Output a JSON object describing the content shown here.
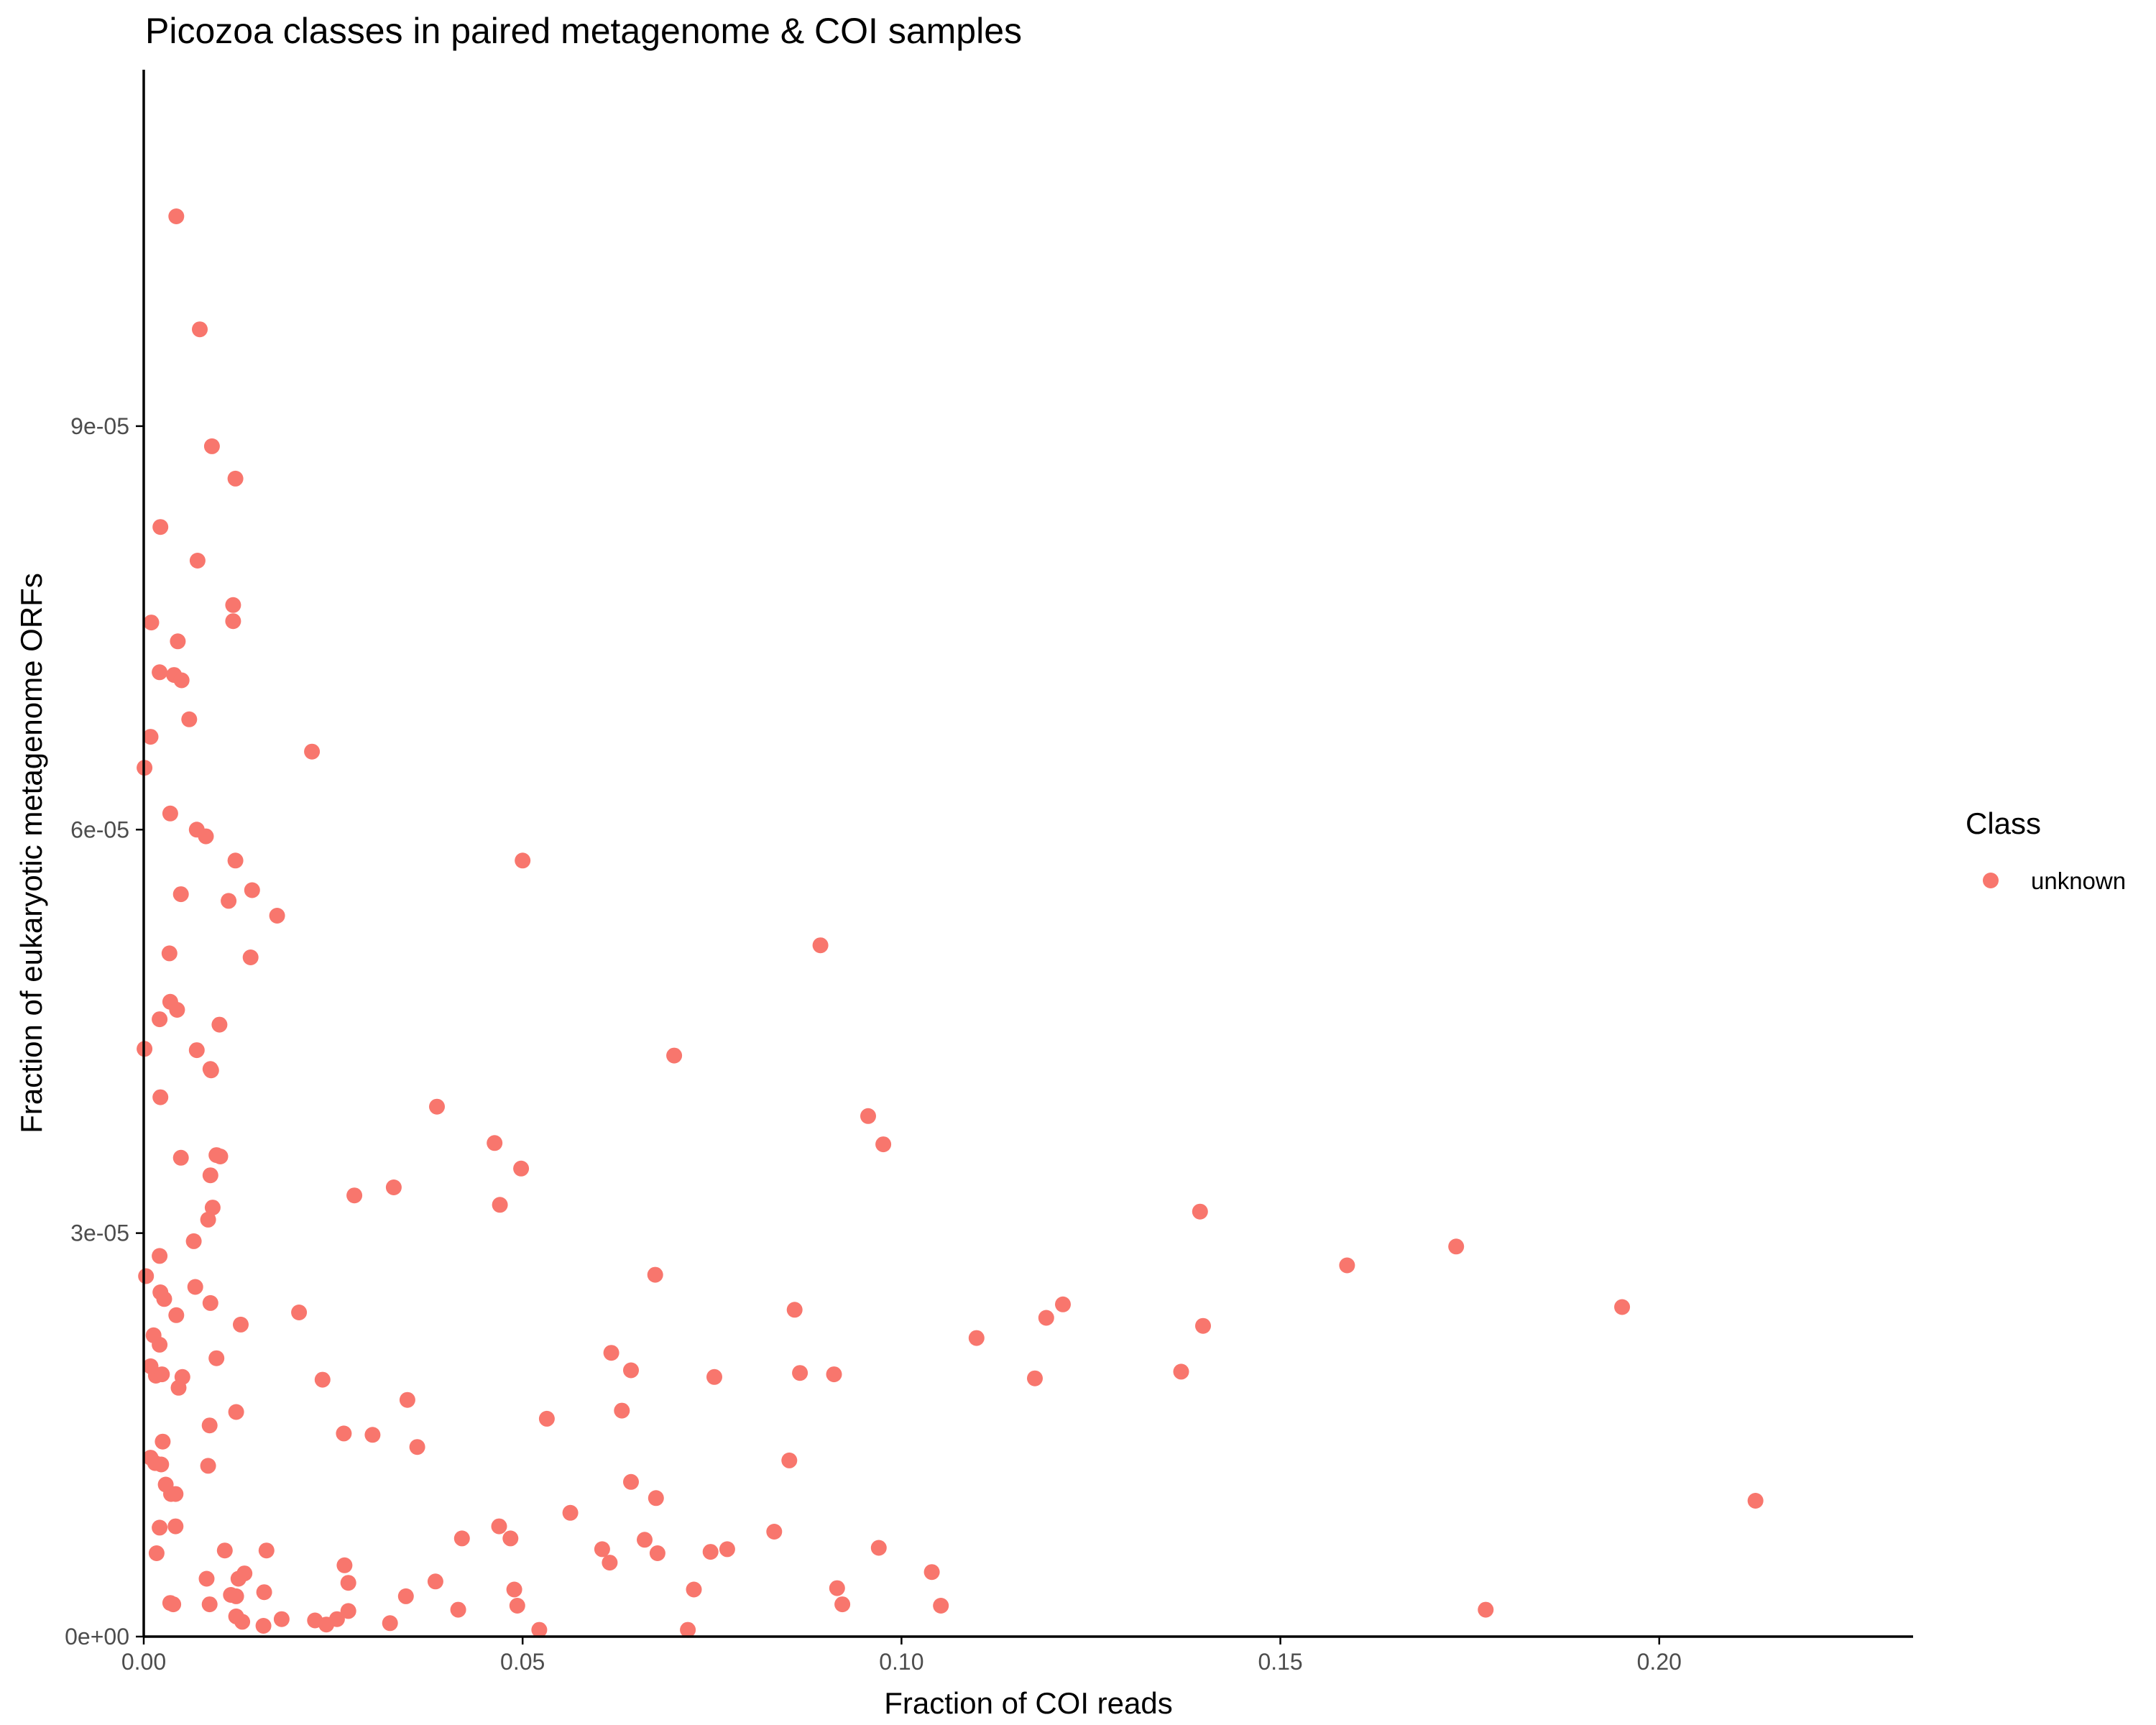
{
  "chart_data": {
    "type": "scatter",
    "title": "Picozoa classes in paired metagenome & COI samples",
    "xlabel": "Fraction of COI reads",
    "ylabel": "Fraction of eukaryotic metagenome ORFs",
    "xlim": [
      0,
      0.2335
    ],
    "ylim": [
      0,
      0.0001165
    ],
    "x_ticks": [
      0,
      0.05,
      0.1,
      0.15,
      0.2
    ],
    "x_tick_labels": [
      "0.00",
      "0.05",
      "0.10",
      "0.15",
      "0.20"
    ],
    "y_ticks": [
      0,
      3e-05,
      6e-05,
      9e-05
    ],
    "y_tick_labels": [
      "0e+00",
      "3e-05",
      "6e-05",
      "9e-05"
    ],
    "grid": false,
    "legend": {
      "title": "Class",
      "position": "right",
      "entries": [
        "unknown"
      ]
    },
    "series": [
      {
        "name": "unknown",
        "color": "#F8766D",
        "points": [
          [
            0.0043,
            0.0001056
          ],
          [
            0.0074,
            9.72e-05
          ],
          [
            0.009,
            8.85e-05
          ],
          [
            0.0121,
            8.61e-05
          ],
          [
            0.0022,
            8.25e-05
          ],
          [
            0.0071,
            8e-05
          ],
          [
            0.0118,
            7.67e-05
          ],
          [
            0.0118,
            7.55e-05
          ],
          [
            0.001,
            7.54e-05
          ],
          [
            0.0045,
            7.4e-05
          ],
          [
            0.0021,
            7.17e-05
          ],
          [
            0.004,
            7.15e-05
          ],
          [
            0.005,
            7.11e-05
          ],
          [
            0.006,
            6.82e-05
          ],
          [
            0.0009,
            6.69e-05
          ],
          [
            0.0222,
            6.58e-05
          ],
          [
            0.0001,
            6.46e-05
          ],
          [
            0.0035,
            6.12e-05
          ],
          [
            0.007,
            6e-05
          ],
          [
            0.0082,
            5.95e-05
          ],
          [
            0.0121,
            5.77e-05
          ],
          [
            0.05,
            5.77e-05
          ],
          [
            0.0143,
            5.55e-05
          ],
          [
            0.0049,
            5.52e-05
          ],
          [
            0.0112,
            5.47e-05
          ],
          [
            0.0176,
            5.36e-05
          ],
          [
            0.0893,
            5.14e-05
          ],
          [
            0.0034,
            5.08e-05
          ],
          [
            0.0141,
            5.05e-05
          ],
          [
            0.0035,
            4.72e-05
          ],
          [
            0.0044,
            4.66e-05
          ],
          [
            0.0021,
            4.59e-05
          ],
          [
            0.01,
            4.55e-05
          ],
          [
            0.0001,
            4.37e-05
          ],
          [
            0.007,
            4.36e-05
          ],
          [
            0.07,
            4.32e-05
          ],
          [
            0.0089,
            4.21e-05
          ],
          [
            0.0088,
            4.22e-05
          ],
          [
            0.0022,
            4.01e-05
          ],
          [
            0.0387,
            3.94e-05
          ],
          [
            0.0956,
            3.87e-05
          ],
          [
            0.0463,
            3.67e-05
          ],
          [
            0.0976,
            3.66e-05
          ],
          [
            0.0096,
            3.58e-05
          ],
          [
            0.0101,
            3.57e-05
          ],
          [
            0.0049,
            3.56e-05
          ],
          [
            0.0498,
            3.48e-05
          ],
          [
            0.0088,
            3.43e-05
          ],
          [
            0.033,
            3.34e-05
          ],
          [
            0.0278,
            3.28e-05
          ],
          [
            0.047,
            3.21e-05
          ],
          [
            0.0091,
            3.19e-05
          ],
          [
            0.1394,
            3.16e-05
          ],
          [
            0.0085,
            3.1e-05
          ],
          [
            0.0066,
            2.94e-05
          ],
          [
            0.1732,
            2.9e-05
          ],
          [
            0.0021,
            2.83e-05
          ],
          [
            0.1588,
            2.76e-05
          ],
          [
            0.0003,
            2.68e-05
          ],
          [
            0.0675,
            2.69e-05
          ],
          [
            0.0068,
            2.6e-05
          ],
          [
            0.0022,
            2.56e-05
          ],
          [
            0.0027,
            2.51e-05
          ],
          [
            0.0088,
            2.48e-05
          ],
          [
            0.1213,
            2.47e-05
          ],
          [
            0.1951,
            2.45e-05
          ],
          [
            0.0859,
            2.43e-05
          ],
          [
            0.0205,
            2.41e-05
          ],
          [
            0.0043,
            2.39e-05
          ],
          [
            0.1191,
            2.37e-05
          ],
          [
            0.0128,
            2.32e-05
          ],
          [
            0.1398,
            2.31e-05
          ],
          [
            0.0013,
            2.24e-05
          ],
          [
            0.1099,
            2.22e-05
          ],
          [
            0.0021,
            2.17e-05
          ],
          [
            0.0617,
            2.11e-05
          ],
          [
            0.0096,
            2.07e-05
          ],
          [
            0.0009,
            2.01e-05
          ],
          [
            0.0643,
            1.98e-05
          ],
          [
            0.0866,
            1.96e-05
          ],
          [
            0.0911,
            1.95e-05
          ],
          [
            0.0016,
            1.94e-05
          ],
          [
            0.0024,
            1.95e-05
          ],
          [
            0.0051,
            1.93e-05
          ],
          [
            0.0753,
            1.93e-05
          ],
          [
            0.1369,
            1.97e-05
          ],
          [
            0.1176,
            1.92e-05
          ],
          [
            0.0236,
            1.91e-05
          ],
          [
            0.0046,
            1.85e-05
          ],
          [
            0.0348,
            1.76e-05
          ],
          [
            0.0122,
            1.67e-05
          ],
          [
            0.0631,
            1.68e-05
          ],
          [
            0.0532,
            1.62e-05
          ],
          [
            0.0087,
            1.57e-05
          ],
          [
            0.0264,
            1.51e-05
          ],
          [
            0.0302,
            1.5e-05
          ],
          [
            0.0361,
            1.41e-05
          ],
          [
            0.0025,
            1.45e-05
          ],
          [
            0.0009,
            1.33e-05
          ],
          [
            0.0852,
            1.31e-05
          ],
          [
            0.0015,
            1.29e-05
          ],
          [
            0.0023,
            1.28e-05
          ],
          [
            0.0085,
            1.27e-05
          ],
          [
            0.0029,
            1.13e-05
          ],
          [
            0.0643,
            1.15e-05
          ],
          [
            0.0036,
            1.06e-05
          ],
          [
            0.0042,
            1.06e-05
          ],
          [
            0.0676,
            1.03e-05
          ],
          [
            0.2127,
            1.01e-05
          ],
          [
            0.0563,
            9.2e-06
          ],
          [
            0.0021,
            8.1e-06
          ],
          [
            0.0042,
            8.2e-06
          ],
          [
            0.0469,
            8.2e-06
          ],
          [
            0.0832,
            7.8e-06
          ],
          [
            0.042,
            7.3e-06
          ],
          [
            0.0484,
            7.3e-06
          ],
          [
            0.0661,
            7.2e-06
          ],
          [
            0.0107,
            6.4e-06
          ],
          [
            0.0162,
            6.4e-06
          ],
          [
            0.0605,
            6.5e-06
          ],
          [
            0.077,
            6.5e-06
          ],
          [
            0.097,
            6.6e-06
          ],
          [
            0.0017,
            6.2e-06
          ],
          [
            0.0678,
            6.2e-06
          ],
          [
            0.0748,
            6.3e-06
          ],
          [
            0.0265,
            5.3e-06
          ],
          [
            0.0615,
            5.5e-06
          ],
          [
            0.104,
            4.8e-06
          ],
          [
            0.0133,
            4.7e-06
          ],
          [
            0.0125,
            4.3e-06
          ],
          [
            0.0083,
            4.3e-06
          ],
          [
            0.027,
            4e-06
          ],
          [
            0.0385,
            4.1e-06
          ],
          [
            0.0489,
            3.5e-06
          ],
          [
            0.0915,
            3.6e-06
          ],
          [
            0.0159,
            3.3e-06
          ],
          [
            0.0726,
            3.5e-06
          ],
          [
            0.0115,
            3.1e-06
          ],
          [
            0.0122,
            3e-06
          ],
          [
            0.0346,
            3e-06
          ],
          [
            0.0035,
            2.5e-06
          ],
          [
            0.0039,
            2.4e-06
          ],
          [
            0.0087,
            2.4e-06
          ],
          [
            0.0493,
            2.3e-06
          ],
          [
            0.0922,
            2.4e-06
          ],
          [
            0.1052,
            2.3e-06
          ],
          [
            0.027,
            1.9e-06
          ],
          [
            0.0415,
            2e-06
          ],
          [
            0.1771,
            2e-06
          ],
          [
            0.0122,
            1.5e-06
          ],
          [
            0.0182,
            1.3e-06
          ],
          [
            0.0226,
            1.2e-06
          ],
          [
            0.0255,
            1.3e-06
          ],
          [
            0.013,
            1.1e-06
          ],
          [
            0.0241,
            9e-07
          ],
          [
            0.0325,
            1e-06
          ],
          [
            0.0158,
            8e-07
          ],
          [
            0.0522,
            5e-07
          ],
          [
            0.0718,
            5e-07
          ]
        ]
      }
    ]
  }
}
